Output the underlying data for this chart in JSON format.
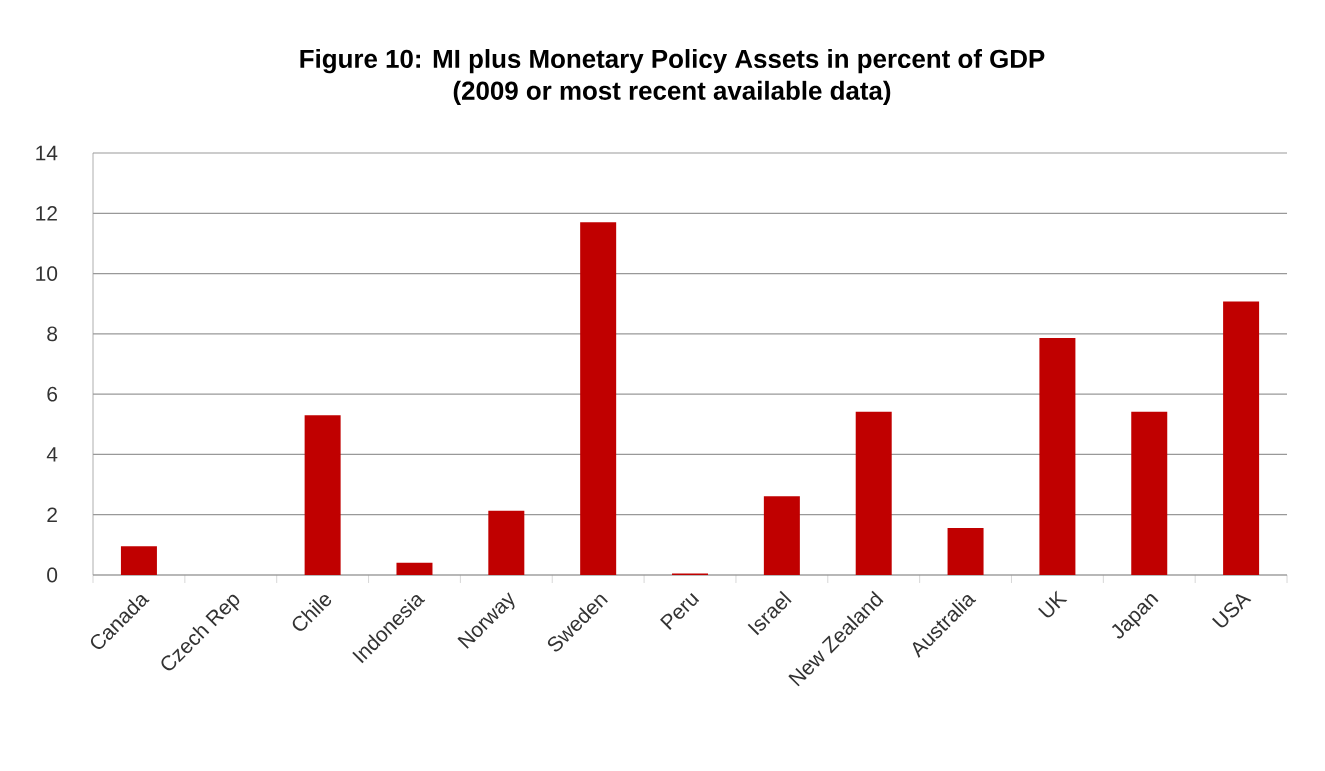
{
  "chart_data": {
    "type": "bar",
    "title": "Figure 10: MI plus Monetary Policy Assets in percent of GDP",
    "subtitle": "(2009 or most recent available data)",
    "categories": [
      "Canada",
      "Czech Rep",
      "Chile",
      "Indonesia",
      "Norway",
      "Sweden",
      "Peru",
      "Israel",
      "New Zealand",
      "Australia",
      "UK",
      "Japan",
      "USA"
    ],
    "values": [
      0.95,
      0,
      5.3,
      0.41,
      2.13,
      11.7,
      0.05,
      2.61,
      5.42,
      1.56,
      7.86,
      5.42,
      9.07
    ],
    "color": "#c00000",
    "ylim": [
      0,
      14
    ],
    "yticks": [
      0,
      2,
      4,
      6,
      8,
      10,
      12,
      14
    ],
    "grid": "y"
  }
}
